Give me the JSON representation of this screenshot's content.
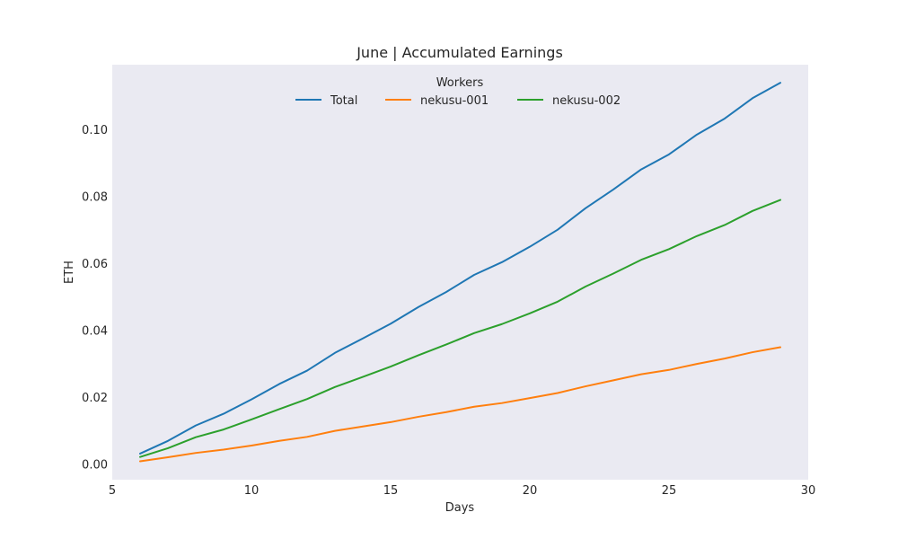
{
  "chart_data": {
    "type": "line",
    "title": "June | Accumulated Earnings",
    "xlabel": "Days",
    "ylabel": "ETH",
    "xlim": [
      5,
      30
    ],
    "ylim": [
      -0.0045,
      0.1195
    ],
    "xticks": [
      5,
      10,
      15,
      20,
      25,
      30
    ],
    "yticks": [
      0.0,
      0.02,
      0.04,
      0.06,
      0.08,
      0.1
    ],
    "xtick_labels": [
      "5",
      "10",
      "15",
      "20",
      "25",
      "30"
    ],
    "ytick_labels": [
      "0.00",
      "0.02",
      "0.04",
      "0.06",
      "0.08",
      "0.10"
    ],
    "grid": false,
    "background": "#EAEAF2",
    "legend": {
      "title": "Workers",
      "placement": "top-center",
      "columns": 3
    },
    "x": [
      6,
      7,
      8,
      9,
      10,
      11,
      12,
      13,
      14,
      15,
      16,
      17,
      18,
      19,
      20,
      21,
      22,
      23,
      24,
      25,
      26,
      27,
      28,
      29
    ],
    "series": [
      {
        "name": "Total",
        "color": "#1F77B4",
        "values": [
          0.0033,
          0.0071,
          0.0117,
          0.0152,
          0.0195,
          0.0241,
          0.0281,
          0.0334,
          0.0377,
          0.0421,
          0.0471,
          0.0516,
          0.0567,
          0.0605,
          0.0651,
          0.0702,
          0.0766,
          0.0822,
          0.0882,
          0.0927,
          0.0986,
          0.1034,
          0.1095,
          0.1141
        ]
      },
      {
        "name": "nekusu-001",
        "color": "#FF7F0E",
        "values": [
          0.001,
          0.0022,
          0.0035,
          0.0045,
          0.0057,
          0.0071,
          0.0083,
          0.0101,
          0.0114,
          0.0127,
          0.0143,
          0.0157,
          0.0173,
          0.0184,
          0.0199,
          0.0214,
          0.0234,
          0.0252,
          0.027,
          0.0283,
          0.0301,
          0.0317,
          0.0336,
          0.0351
        ]
      },
      {
        "name": "nekusu-002",
        "color": "#2CA02C",
        "values": [
          0.0023,
          0.0049,
          0.0082,
          0.0105,
          0.0135,
          0.0166,
          0.0196,
          0.0232,
          0.0262,
          0.0293,
          0.0327,
          0.0359,
          0.0393,
          0.042,
          0.0452,
          0.0487,
          0.0532,
          0.0571,
          0.0612,
          0.0644,
          0.0683,
          0.0716,
          0.0758,
          0.0791
        ]
      }
    ]
  }
}
